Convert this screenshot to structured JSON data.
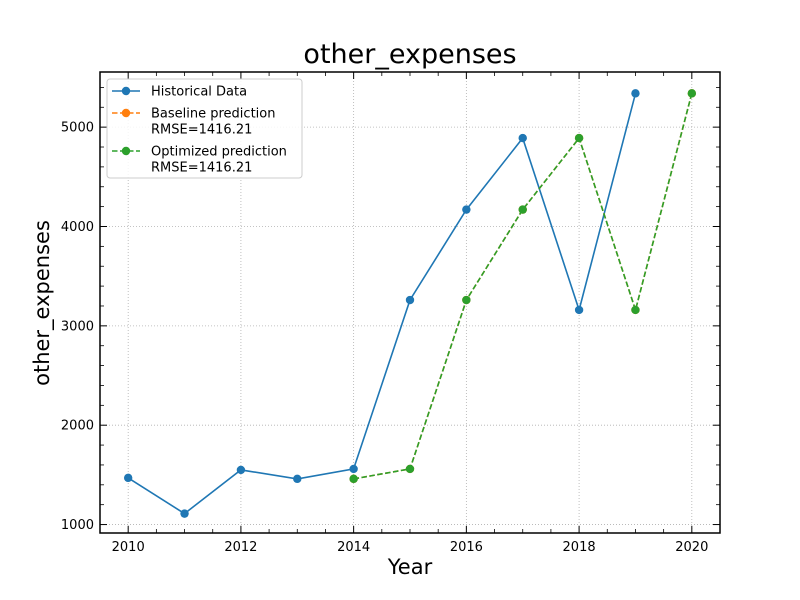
{
  "chart_data": {
    "type": "line",
    "title": "other_expenses",
    "xlabel": "Year",
    "ylabel": "other_expenses",
    "xlim": [
      2009.5,
      2020.5
    ],
    "ylim": [
      915,
      5555
    ],
    "xticks": [
      2010,
      2012,
      2014,
      2016,
      2018,
      2020
    ],
    "yticks": [
      1000,
      2000,
      3000,
      4000,
      5000
    ],
    "grid": true,
    "legend_position": "top-left",
    "series": [
      {
        "name": "Historical Data",
        "color": "#1f77b4",
        "style": "solid",
        "marker": "circle",
        "x": [
          2010,
          2011,
          2012,
          2013,
          2014,
          2015,
          2016,
          2017,
          2018,
          2019
        ],
        "y": [
          1470,
          1110,
          1550,
          1460,
          1560,
          3260,
          4170,
          4890,
          3160,
          5340
        ]
      },
      {
        "name": "Baseline prediction\nRMSE=1416.21",
        "color": "#ff7f0e",
        "style": "dashed",
        "marker": "circle",
        "x": [
          2014,
          2015,
          2016,
          2017,
          2018,
          2019,
          2020
        ],
        "y": [
          1460,
          1560,
          3260,
          4170,
          4890,
          3160,
          5340
        ]
      },
      {
        "name": "Optimized prediction\nRMSE=1416.21",
        "color": "#2ca02c",
        "style": "dashed",
        "marker": "circle",
        "x": [
          2014,
          2015,
          2016,
          2017,
          2018,
          2019,
          2020
        ],
        "y": [
          1460,
          1560,
          3260,
          4170,
          4890,
          3160,
          5340
        ]
      }
    ]
  }
}
